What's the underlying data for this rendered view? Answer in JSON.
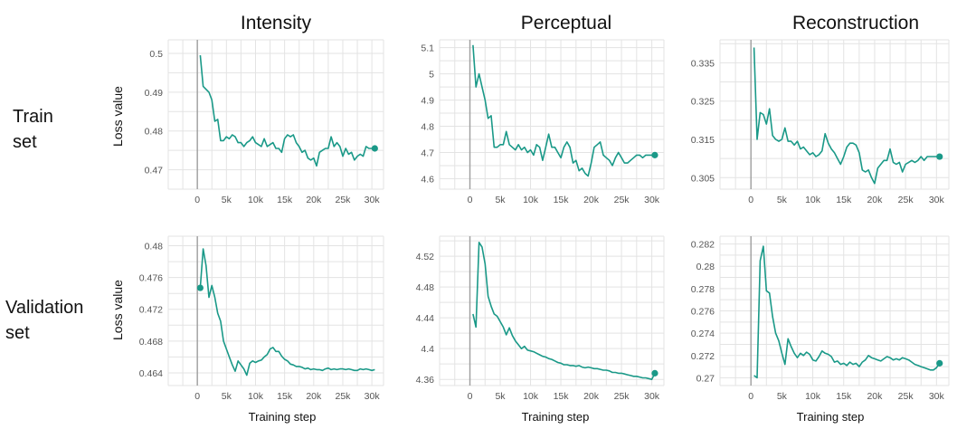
{
  "column_titles": [
    "Intensity",
    "Perceptual",
    "Reconstruction"
  ],
  "row_labels": {
    "train": "Train\nset",
    "validation": "Validation\nset"
  },
  "y_axis_label": "Loss value",
  "x_axis_label": "Training step",
  "colors": {
    "line": "#1a9988",
    "grid": "#e3e3e3",
    "axis": "#9e9e9e"
  },
  "chart_data": [
    {
      "type": "line",
      "title": "Intensity",
      "row": "Train set",
      "xlabel": "",
      "ylabel": "Loss value",
      "xlim": [
        -5000,
        32000
      ],
      "ylim": [
        0.465,
        0.5035
      ],
      "xticks": [
        0,
        5000,
        10000,
        15000,
        20000,
        25000,
        30000
      ],
      "xtick_labels": [
        "0",
        "5k",
        "10k",
        "15k",
        "20k",
        "25k",
        "30k"
      ],
      "yticks": [
        0.47,
        0.48,
        0.49,
        0.5
      ],
      "ytick_labels": [
        "0.47",
        "0.48",
        "0.49",
        "0.5"
      ],
      "x": [
        500,
        1000,
        2000,
        2500,
        3000,
        3500,
        4000,
        4500,
        5000,
        5500,
        6000,
        6500,
        7000,
        7500,
        8000,
        8500,
        9000,
        9500,
        10000,
        10500,
        11000,
        11500,
        12000,
        12500,
        13000,
        13500,
        14000,
        14500,
        15000,
        15500,
        16000,
        16500,
        17000,
        17500,
        18000,
        18500,
        19000,
        19500,
        20000,
        20500,
        21000,
        21500,
        22000,
        22500,
        23000,
        23500,
        24000,
        24500,
        25000,
        25500,
        26000,
        26500,
        27000,
        27500,
        28000,
        28500,
        29000,
        29500,
        30000,
        30500
      ],
      "y": [
        0.4995,
        0.4915,
        0.49,
        0.488,
        0.4825,
        0.483,
        0.4775,
        0.4775,
        0.4785,
        0.478,
        0.479,
        0.4785,
        0.477,
        0.477,
        0.476,
        0.477,
        0.4775,
        0.4785,
        0.477,
        0.4765,
        0.476,
        0.478,
        0.476,
        0.4765,
        0.477,
        0.4755,
        0.4755,
        0.4745,
        0.478,
        0.479,
        0.4785,
        0.479,
        0.477,
        0.476,
        0.4745,
        0.475,
        0.473,
        0.4725,
        0.473,
        0.471,
        0.4745,
        0.475,
        0.4755,
        0.4755,
        0.4785,
        0.476,
        0.477,
        0.476,
        0.4735,
        0.4755,
        0.474,
        0.4745,
        0.4725,
        0.4735,
        0.474,
        0.4735,
        0.476,
        0.4755,
        0.4755,
        0.4755
      ],
      "end_marker": true
    },
    {
      "type": "line",
      "title": "Perceptual",
      "row": "Train set",
      "xlabel": "",
      "ylabel": "",
      "xlim": [
        -5000,
        32000
      ],
      "ylim": [
        4.56,
        5.13
      ],
      "xticks": [
        0,
        5000,
        10000,
        15000,
        20000,
        25000,
        30000
      ],
      "xtick_labels": [
        "0",
        "5k",
        "10k",
        "15k",
        "20k",
        "25k",
        "30k"
      ],
      "yticks": [
        4.6,
        4.7,
        4.8,
        4.9,
        5.0,
        5.1
      ],
      "ytick_labels": [
        "4.6",
        "4.7",
        "4.8",
        "4.9",
        "5",
        "5.1"
      ],
      "x": [
        500,
        1000,
        1500,
        2000,
        2500,
        3000,
        3500,
        4000,
        4500,
        5000,
        5500,
        6000,
        6500,
        7000,
        7500,
        8000,
        8500,
        9000,
        9500,
        10000,
        10500,
        11000,
        11500,
        12000,
        12500,
        13000,
        13500,
        14000,
        14500,
        15000,
        15500,
        16000,
        16500,
        17000,
        17500,
        18000,
        18500,
        19000,
        19500,
        20000,
        20500,
        21000,
        21500,
        22000,
        22500,
        23000,
        23500,
        24000,
        24500,
        25000,
        25500,
        26000,
        26500,
        27000,
        27500,
        28000,
        28500,
        29000,
        29500,
        30000,
        30500
      ],
      "y": [
        5.11,
        4.95,
        5.0,
        4.95,
        4.9,
        4.83,
        4.84,
        4.72,
        4.72,
        4.73,
        4.73,
        4.78,
        4.73,
        4.72,
        4.71,
        4.73,
        4.71,
        4.72,
        4.7,
        4.71,
        4.69,
        4.73,
        4.72,
        4.67,
        4.72,
        4.77,
        4.72,
        4.72,
        4.7,
        4.68,
        4.72,
        4.74,
        4.72,
        4.66,
        4.67,
        4.63,
        4.64,
        4.62,
        4.61,
        4.66,
        4.72,
        4.73,
        4.74,
        4.69,
        4.68,
        4.67,
        4.65,
        4.68,
        4.7,
        4.68,
        4.66,
        4.66,
        4.67,
        4.68,
        4.69,
        4.69,
        4.68,
        4.69,
        4.69,
        4.69,
        4.69
      ],
      "end_marker": true
    },
    {
      "type": "line",
      "title": "Reconstruction",
      "row": "Train set",
      "xlabel": "",
      "ylabel": "",
      "xlim": [
        -5000,
        32000
      ],
      "ylim": [
        0.302,
        0.341
      ],
      "xticks": [
        0,
        5000,
        10000,
        15000,
        20000,
        25000,
        30000
      ],
      "xtick_labels": [
        "0",
        "5k",
        "10k",
        "15k",
        "20k",
        "25k",
        "30k"
      ],
      "yticks": [
        0.305,
        0.315,
        0.325,
        0.335
      ],
      "ytick_labels": [
        "0.305",
        "0.315",
        "0.325",
        "0.335"
      ],
      "x": [
        500,
        1000,
        1500,
        2000,
        2500,
        3000,
        3500,
        4000,
        4500,
        5000,
        5500,
        6000,
        6500,
        7000,
        7500,
        8000,
        8500,
        9000,
        9500,
        10000,
        10500,
        11000,
        11500,
        12000,
        12500,
        13000,
        13500,
        14000,
        14500,
        15000,
        15500,
        16000,
        16500,
        17000,
        17500,
        18000,
        18500,
        19000,
        19500,
        20000,
        20500,
        21000,
        21500,
        22000,
        22500,
        23000,
        23500,
        24000,
        24500,
        25000,
        25500,
        26000,
        26500,
        27000,
        27500,
        28000,
        28500,
        29000,
        29500,
        30000,
        30500
      ],
      "y": [
        0.339,
        0.315,
        0.322,
        0.3215,
        0.319,
        0.323,
        0.316,
        0.315,
        0.3145,
        0.315,
        0.318,
        0.3145,
        0.3145,
        0.3135,
        0.3145,
        0.3125,
        0.313,
        0.312,
        0.311,
        0.3115,
        0.3105,
        0.311,
        0.312,
        0.3165,
        0.314,
        0.3125,
        0.3115,
        0.31,
        0.3085,
        0.3105,
        0.313,
        0.314,
        0.314,
        0.3135,
        0.3115,
        0.307,
        0.3065,
        0.307,
        0.305,
        0.3035,
        0.3075,
        0.3085,
        0.3095,
        0.3095,
        0.3125,
        0.309,
        0.3085,
        0.309,
        0.3065,
        0.3085,
        0.309,
        0.3095,
        0.309,
        0.3095,
        0.3105,
        0.3095,
        0.3105,
        0.3105,
        0.3105,
        0.3105,
        0.3105
      ],
      "end_marker": true
    },
    {
      "type": "line",
      "title": "Intensity",
      "row": "Validation set",
      "xlabel": "Training step",
      "ylabel": "Loss value",
      "xlim": [
        -5000,
        32000
      ],
      "ylim": [
        0.4624,
        0.4812
      ],
      "xticks": [
        0,
        5000,
        10000,
        15000,
        20000,
        25000,
        30000
      ],
      "xtick_labels": [
        "0",
        "5k",
        "10k",
        "15k",
        "20k",
        "25k",
        "30k"
      ],
      "yticks": [
        0.464,
        0.468,
        0.472,
        0.476,
        0.48
      ],
      "ytick_labels": [
        "0.464",
        "0.468",
        "0.472",
        "0.476",
        "0.48"
      ],
      "x": [
        500,
        1000,
        1500,
        2000,
        2500,
        3000,
        3500,
        4000,
        4500,
        5000,
        5500,
        6000,
        6500,
        7000,
        7500,
        8000,
        8500,
        9000,
        9500,
        10000,
        10500,
        11000,
        11500,
        12000,
        12500,
        13000,
        13500,
        14000,
        14500,
        15000,
        15500,
        16000,
        16500,
        17000,
        17500,
        18000,
        18500,
        19000,
        19500,
        20000,
        20500,
        21000,
        21500,
        22000,
        22500,
        23000,
        23500,
        24000,
        24500,
        25000,
        25500,
        26000,
        26500,
        27000,
        27500,
        28000,
        28500,
        29000,
        29500,
        30000,
        30500
      ],
      "y": [
        0.4747,
        0.4796,
        0.4775,
        0.4735,
        0.475,
        0.4735,
        0.4715,
        0.4705,
        0.468,
        0.467,
        0.466,
        0.465,
        0.4642,
        0.4655,
        0.465,
        0.4645,
        0.4637,
        0.4652,
        0.4655,
        0.4653,
        0.4655,
        0.4656,
        0.466,
        0.4663,
        0.467,
        0.4672,
        0.4667,
        0.4667,
        0.4661,
        0.4657,
        0.4655,
        0.4651,
        0.465,
        0.4648,
        0.4648,
        0.4647,
        0.4645,
        0.4646,
        0.4644,
        0.4645,
        0.4644,
        0.4644,
        0.4643,
        0.4645,
        0.4646,
        0.4644,
        0.4645,
        0.4644,
        0.4645,
        0.4645,
        0.4644,
        0.4645,
        0.4644,
        0.4643,
        0.4643,
        0.4645,
        0.4644,
        0.4645,
        0.4644,
        0.4643,
        0.4644
      ],
      "start_marker": true
    },
    {
      "type": "line",
      "title": "Perceptual",
      "row": "Validation set",
      "xlabel": "Training step",
      "ylabel": "",
      "xlim": [
        -5000,
        32000
      ],
      "ylim": [
        4.352,
        4.546
      ],
      "xticks": [
        0,
        5000,
        10000,
        15000,
        20000,
        25000,
        30000
      ],
      "xtick_labels": [
        "0",
        "5k",
        "10k",
        "15k",
        "20k",
        "25k",
        "30k"
      ],
      "yticks": [
        4.36,
        4.4,
        4.44,
        4.48,
        4.52
      ],
      "ytick_labels": [
        "4.36",
        "4.4",
        "4.44",
        "4.48",
        "4.52"
      ],
      "x": [
        500,
        1000,
        1500,
        2000,
        2500,
        3000,
        3500,
        4000,
        4500,
        5000,
        5500,
        6000,
        6500,
        7000,
        7500,
        8000,
        8500,
        9000,
        9500,
        10000,
        10500,
        11000,
        11500,
        12000,
        12500,
        13000,
        13500,
        14000,
        14500,
        15000,
        15500,
        16000,
        16500,
        17000,
        17500,
        18000,
        18500,
        19000,
        19500,
        20000,
        20500,
        21000,
        21500,
        22000,
        22500,
        23000,
        23500,
        24000,
        24500,
        25000,
        25500,
        26000,
        26500,
        27000,
        27500,
        28000,
        28500,
        29000,
        29500,
        30000,
        30500
      ],
      "y": [
        4.445,
        4.428,
        4.538,
        4.532,
        4.51,
        4.468,
        4.455,
        4.445,
        4.442,
        4.435,
        4.428,
        4.418,
        4.427,
        4.417,
        4.41,
        4.405,
        4.4,
        4.403,
        4.398,
        4.397,
        4.396,
        4.394,
        4.392,
        4.39,
        4.389,
        4.387,
        4.386,
        4.384,
        4.382,
        4.381,
        4.379,
        4.379,
        4.378,
        4.378,
        4.377,
        4.378,
        4.376,
        4.375,
        4.376,
        4.375,
        4.374,
        4.374,
        4.373,
        4.372,
        4.372,
        4.371,
        4.369,
        4.369,
        4.368,
        4.368,
        4.367,
        4.366,
        4.365,
        4.364,
        4.364,
        4.363,
        4.362,
        4.362,
        4.361,
        4.36,
        4.368
      ],
      "end_marker": true
    },
    {
      "type": "line",
      "title": "Reconstruction",
      "row": "Validation set",
      "xlabel": "Training step",
      "ylabel": "",
      "xlim": [
        -5000,
        32000
      ],
      "ylim": [
        0.2693,
        0.2827
      ],
      "xticks": [
        0,
        5000,
        10000,
        15000,
        20000,
        25000,
        30000
      ],
      "xtick_labels": [
        "0",
        "5k",
        "10k",
        "15k",
        "20k",
        "25k",
        "30k"
      ],
      "yticks": [
        0.27,
        0.272,
        0.274,
        0.276,
        0.278,
        0.28,
        0.282
      ],
      "ytick_labels": [
        "0.27",
        "0.272",
        "0.274",
        "0.276",
        "0.278",
        "0.28",
        "0.282"
      ],
      "x": [
        500,
        1000,
        1500,
        2000,
        2500,
        3000,
        3500,
        4000,
        4500,
        5000,
        5500,
        6000,
        6500,
        7000,
        7500,
        8000,
        8500,
        9000,
        9500,
        10000,
        10500,
        11000,
        11500,
        12000,
        12500,
        13000,
        13500,
        14000,
        14500,
        15000,
        15500,
        16000,
        16500,
        17000,
        17500,
        18000,
        18500,
        19000,
        19500,
        20000,
        20500,
        21000,
        21500,
        22000,
        22500,
        23000,
        23500,
        24000,
        24500,
        25000,
        25500,
        26000,
        26500,
        27000,
        27500,
        28000,
        28500,
        29000,
        29500,
        30000,
        30500
      ],
      "y": [
        0.2702,
        0.27,
        0.2805,
        0.2818,
        0.2778,
        0.2776,
        0.2755,
        0.274,
        0.2733,
        0.2722,
        0.2712,
        0.2735,
        0.2728,
        0.2722,
        0.2718,
        0.2722,
        0.272,
        0.2723,
        0.2721,
        0.2716,
        0.2715,
        0.2719,
        0.2724,
        0.2722,
        0.2721,
        0.2719,
        0.2714,
        0.2715,
        0.2712,
        0.2713,
        0.2711,
        0.2714,
        0.2712,
        0.2713,
        0.271,
        0.2714,
        0.2716,
        0.272,
        0.2718,
        0.2717,
        0.2716,
        0.2715,
        0.2717,
        0.2719,
        0.2718,
        0.2716,
        0.2717,
        0.2716,
        0.2718,
        0.2717,
        0.2716,
        0.2714,
        0.2712,
        0.2711,
        0.271,
        0.2709,
        0.2708,
        0.2707,
        0.2707,
        0.2709,
        0.2713
      ],
      "end_marker": true
    }
  ]
}
